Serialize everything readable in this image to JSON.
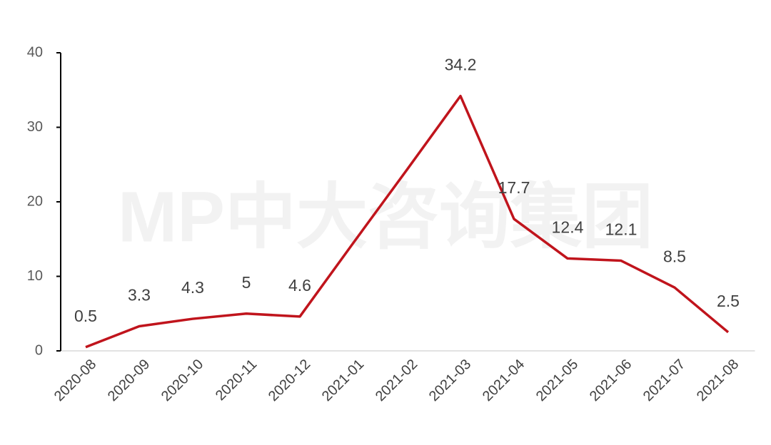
{
  "chart_data": {
    "type": "line",
    "watermark": "MP中大咨询集团",
    "categories": [
      "2020-08",
      "2020-09",
      "2020-10",
      "2020-11",
      "2020-12",
      "2021-01",
      "2021-02",
      "2021-03",
      "2021-04",
      "2021-05",
      "2021-06",
      "2021-07",
      "2021-08"
    ],
    "values": [
      0.5,
      3.3,
      4.3,
      5,
      4.6,
      14.5,
      24.3,
      34.2,
      17.7,
      12.4,
      12.1,
      8.5,
      2.5
    ],
    "value_labels": [
      "0.5",
      "3.3",
      "4.3",
      "5",
      "4.6",
      null,
      null,
      "34.2",
      "17.7",
      "12.4",
      "12.1",
      "8.5",
      "2.5"
    ],
    "color": "#c0141c",
    "ylim": [
      0,
      40
    ],
    "yticks": [
      0,
      10,
      20,
      30,
      40
    ],
    "grid": false
  }
}
